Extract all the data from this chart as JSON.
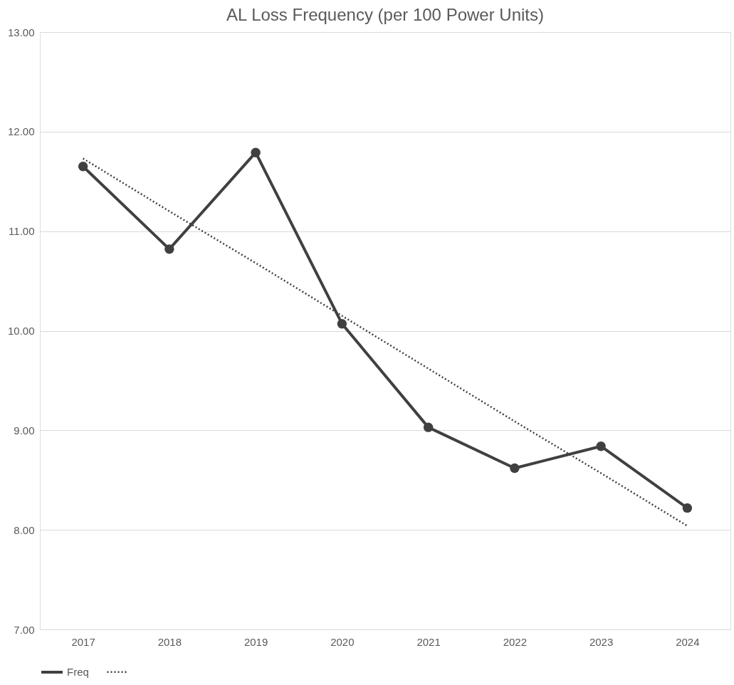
{
  "chart_data": {
    "type": "line",
    "title": "AL Loss Frequency (per 100 Power Units)",
    "categories": [
      "2017",
      "2018",
      "2019",
      "2020",
      "2021",
      "2022",
      "2023",
      "2024"
    ],
    "series": [
      {
        "name": "Freq",
        "color": "#404040",
        "values": [
          11.65,
          10.82,
          11.79,
          10.07,
          9.03,
          8.62,
          8.84,
          8.22
        ],
        "marker": "circle",
        "line_style": "solid"
      },
      {
        "type": "line",
        "color": "#404040",
        "values": [
          11.73,
          11.2,
          10.68,
          10.15,
          9.62,
          9.09,
          8.57,
          8.04
        ],
        "marker": "none",
        "line_style": "dotted"
      }
    ],
    "ylim": [
      7,
      13
    ],
    "yticks": [
      {
        "value": 7,
        "label": "7.00"
      },
      {
        "value": 8,
        "label": "8.00"
      },
      {
        "value": 9,
        "label": "9.00"
      },
      {
        "value": 10,
        "label": "10.00"
      },
      {
        "value": 11,
        "label": "11.00"
      },
      {
        "value": 12,
        "label": "12.00"
      },
      {
        "value": 13,
        "label": "13.00"
      }
    ],
    "grid": "y",
    "legend": "bottom"
  }
}
